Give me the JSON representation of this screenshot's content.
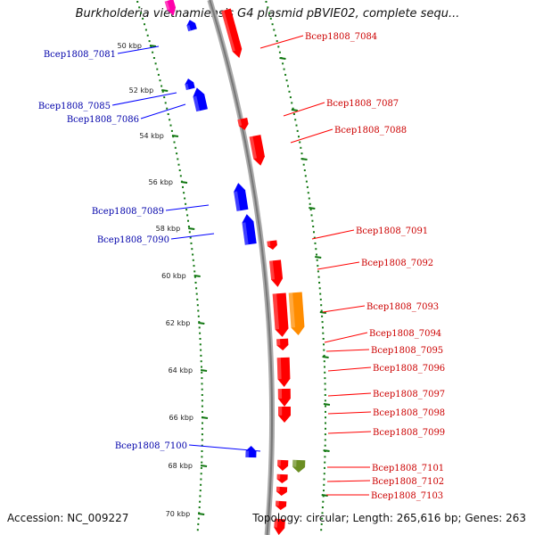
{
  "title": "Burkholderia vietnamiensis G4 plasmid pBVIE02, complete sequ...",
  "footer": {
    "accession": "Accession: NC_009227",
    "topology": "Topology: circular; Length: 265,616 bp; Genes: 263"
  },
  "colors": {
    "forward": "#ff0000",
    "reverse": "#0000ff",
    "orange": "#ff8c00",
    "olive": "#6b8e23",
    "magenta": "#ff00aa",
    "tick": "#117711",
    "backbone": "#888888"
  },
  "kbp_labels": [
    "50 kbp",
    "52 kbp",
    "54 kbp",
    "56 kbp",
    "58 kbp",
    "60 kbp",
    "62 kbp",
    "64 kbp",
    "66 kbp",
    "68 kbp",
    "70 kbp"
  ],
  "labels_left": [
    "Bcep1808_7081",
    "Bcep1808_7085",
    "Bcep1808_7086",
    "Bcep1808_7089",
    "Bcep1808_7090",
    "Bcep1808_7100"
  ],
  "labels_right": [
    "Bcep1808_7084",
    "Bcep1808_7087",
    "Bcep1808_7088",
    "Bcep1808_7091",
    "Bcep1808_7092",
    "Bcep1808_7093",
    "Bcep1808_7094",
    "Bcep1808_7095",
    "Bcep1808_7096",
    "Bcep1808_7097",
    "Bcep1808_7098",
    "Bcep1808_7099",
    "Bcep1808_7101",
    "Bcep1808_7102",
    "Bcep1808_7103"
  ]
}
